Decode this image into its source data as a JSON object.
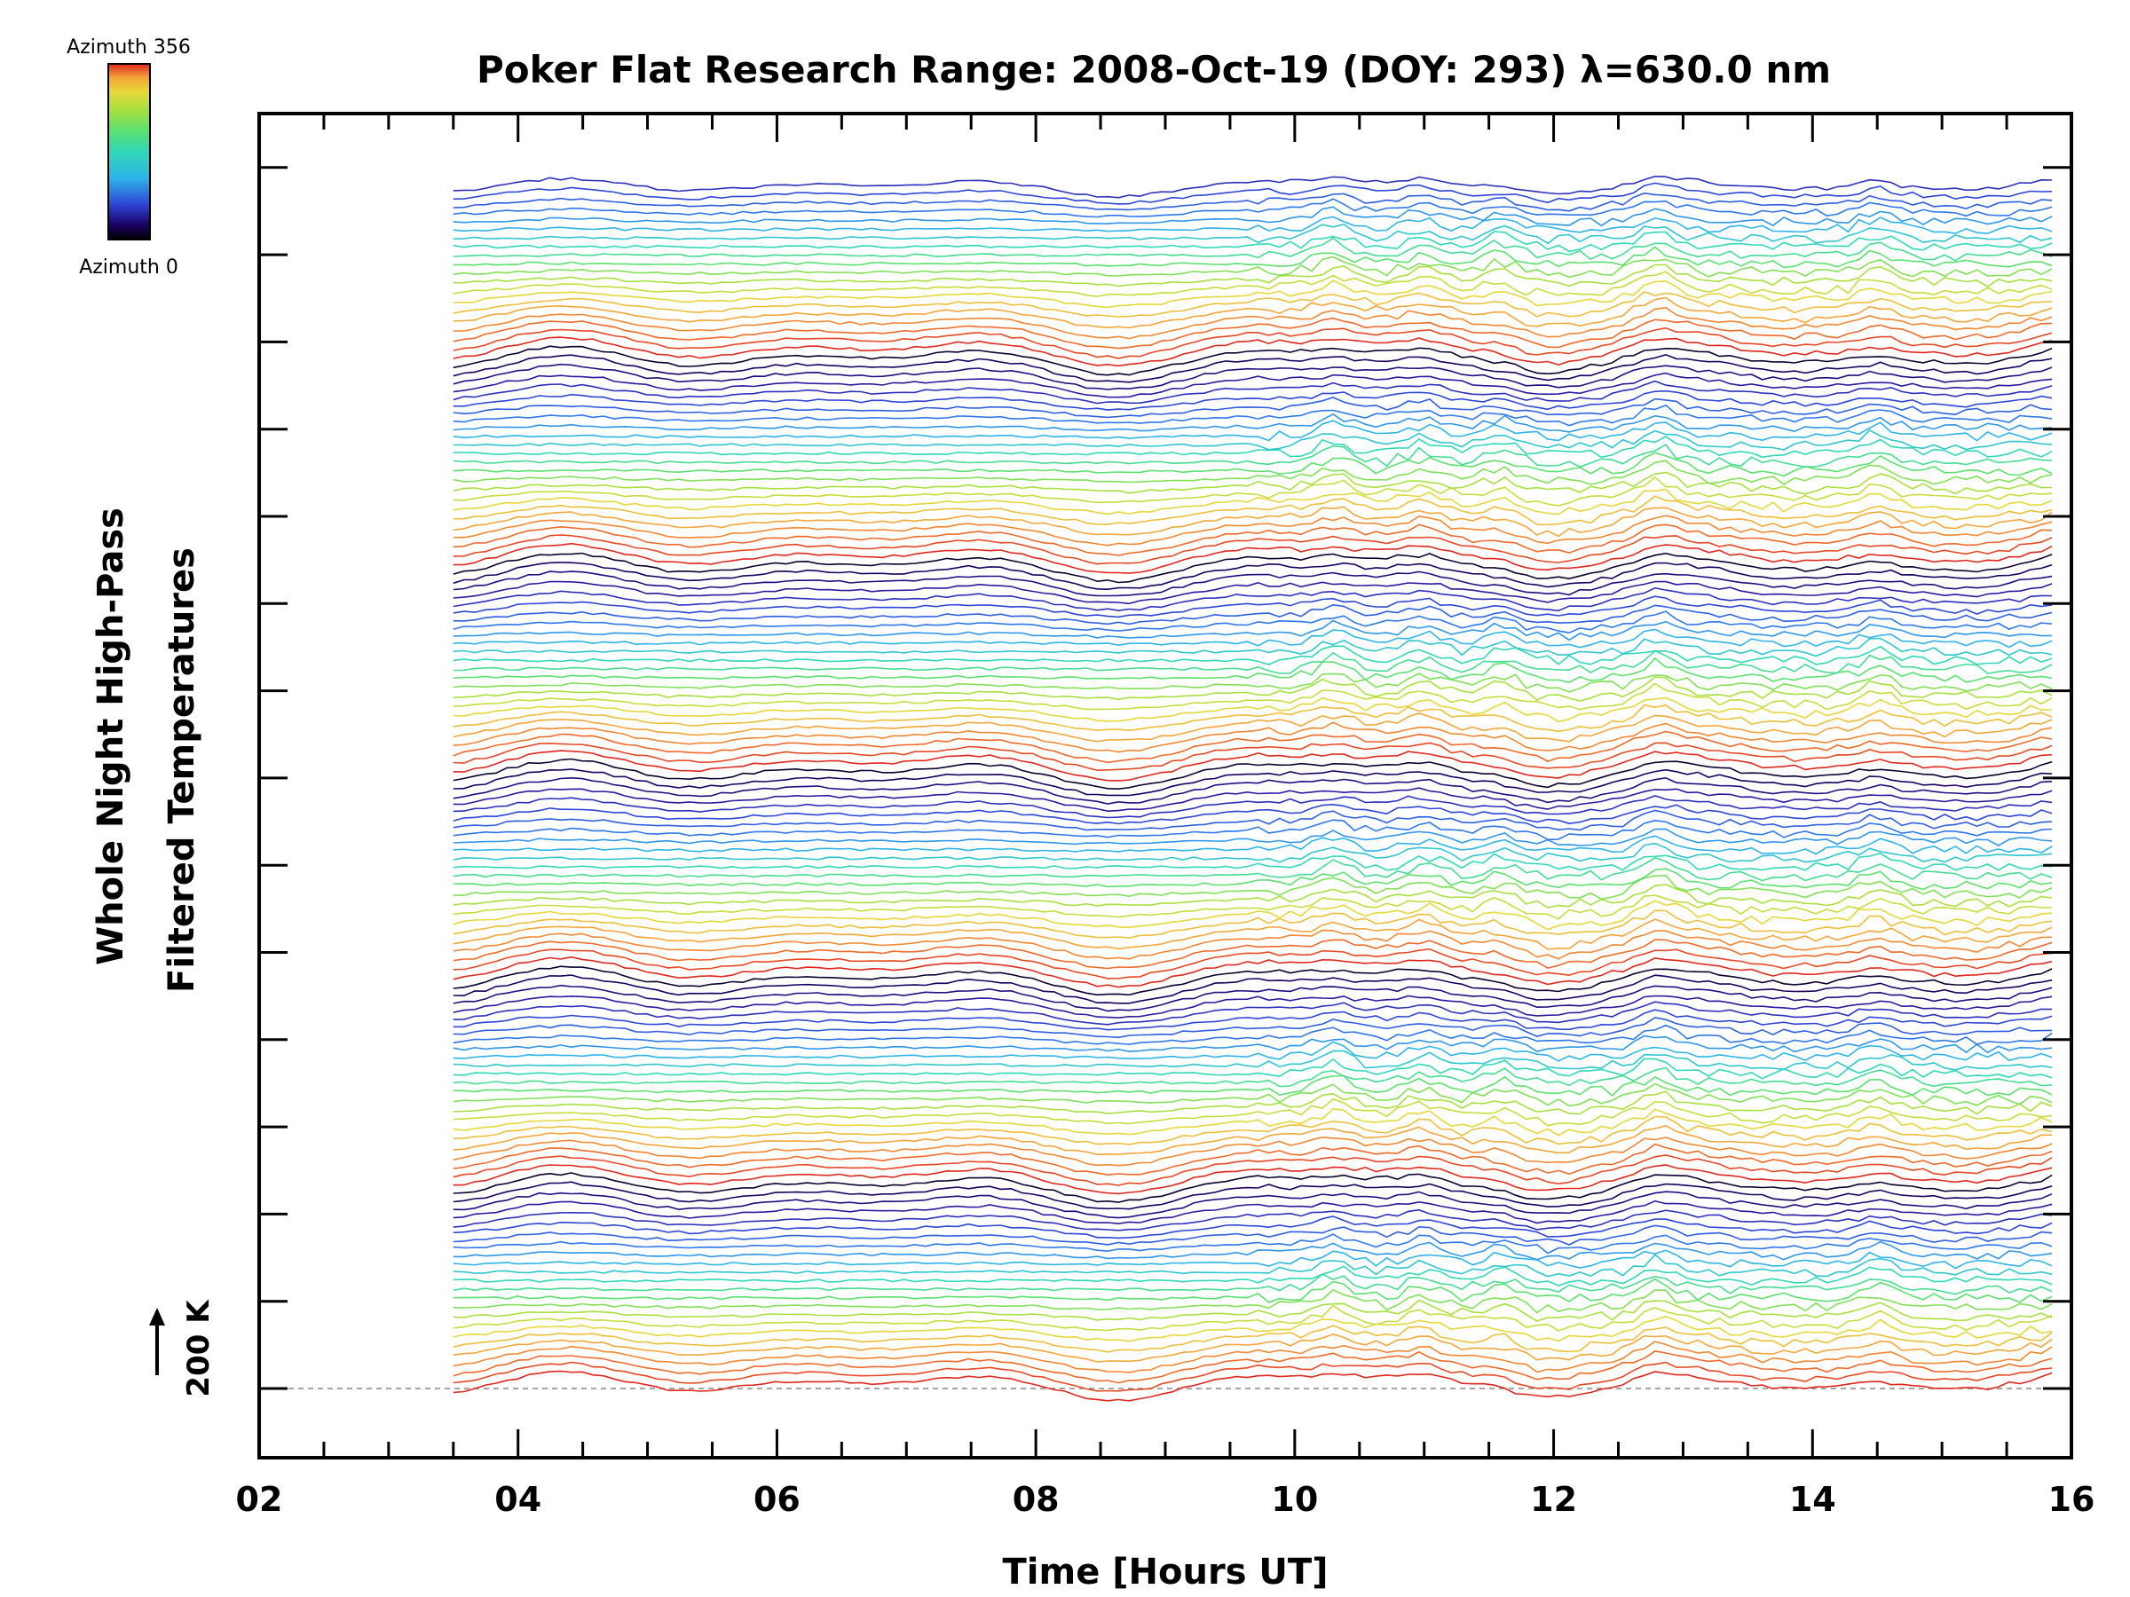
{
  "chart_data": {
    "type": "line",
    "title": "Poker Flat Research Range: 2008-Oct-19 (DOY: 293) λ=630.0 nm",
    "xlabel": "Time [Hours UT]",
    "ylabel_lines": [
      "Whole Night High-Pass",
      "Filtered Temperatures"
    ],
    "x_ticks": [
      "02",
      "04",
      "06",
      "08",
      "10",
      "12",
      "14",
      "16"
    ],
    "xlim": [
      2,
      16
    ],
    "data_start_hour": 3.5,
    "data_end_hour": 15.85,
    "scale_bar_label": "200 K",
    "colorbar": {
      "top_label": "Azimuth 356",
      "bottom_label": "Azimuth 0",
      "azimuth_range": [
        0,
        356
      ]
    },
    "series_count": 140,
    "azimuth_cycle_length": 24,
    "colors": {
      "rainbow": [
        "#000000",
        "#1a0060",
        "#2a1aa0",
        "#2e46d8",
        "#2f78ea",
        "#2eb4e8",
        "#30d8b8",
        "#5ce070",
        "#a8e040",
        "#e6d83a",
        "#f5a63a",
        "#f06a2a",
        "#e0281e"
      ]
    },
    "disturbance_features": [
      {
        "hour": 10.3,
        "amplitude": 0.9
      },
      {
        "hour": 11.0,
        "amplitude": 0.7
      },
      {
        "hour": 11.6,
        "amplitude": 0.8
      },
      {
        "hour": 12.8,
        "amplitude": 1.0
      },
      {
        "hour": 14.5,
        "amplitude": 0.8
      }
    ]
  }
}
